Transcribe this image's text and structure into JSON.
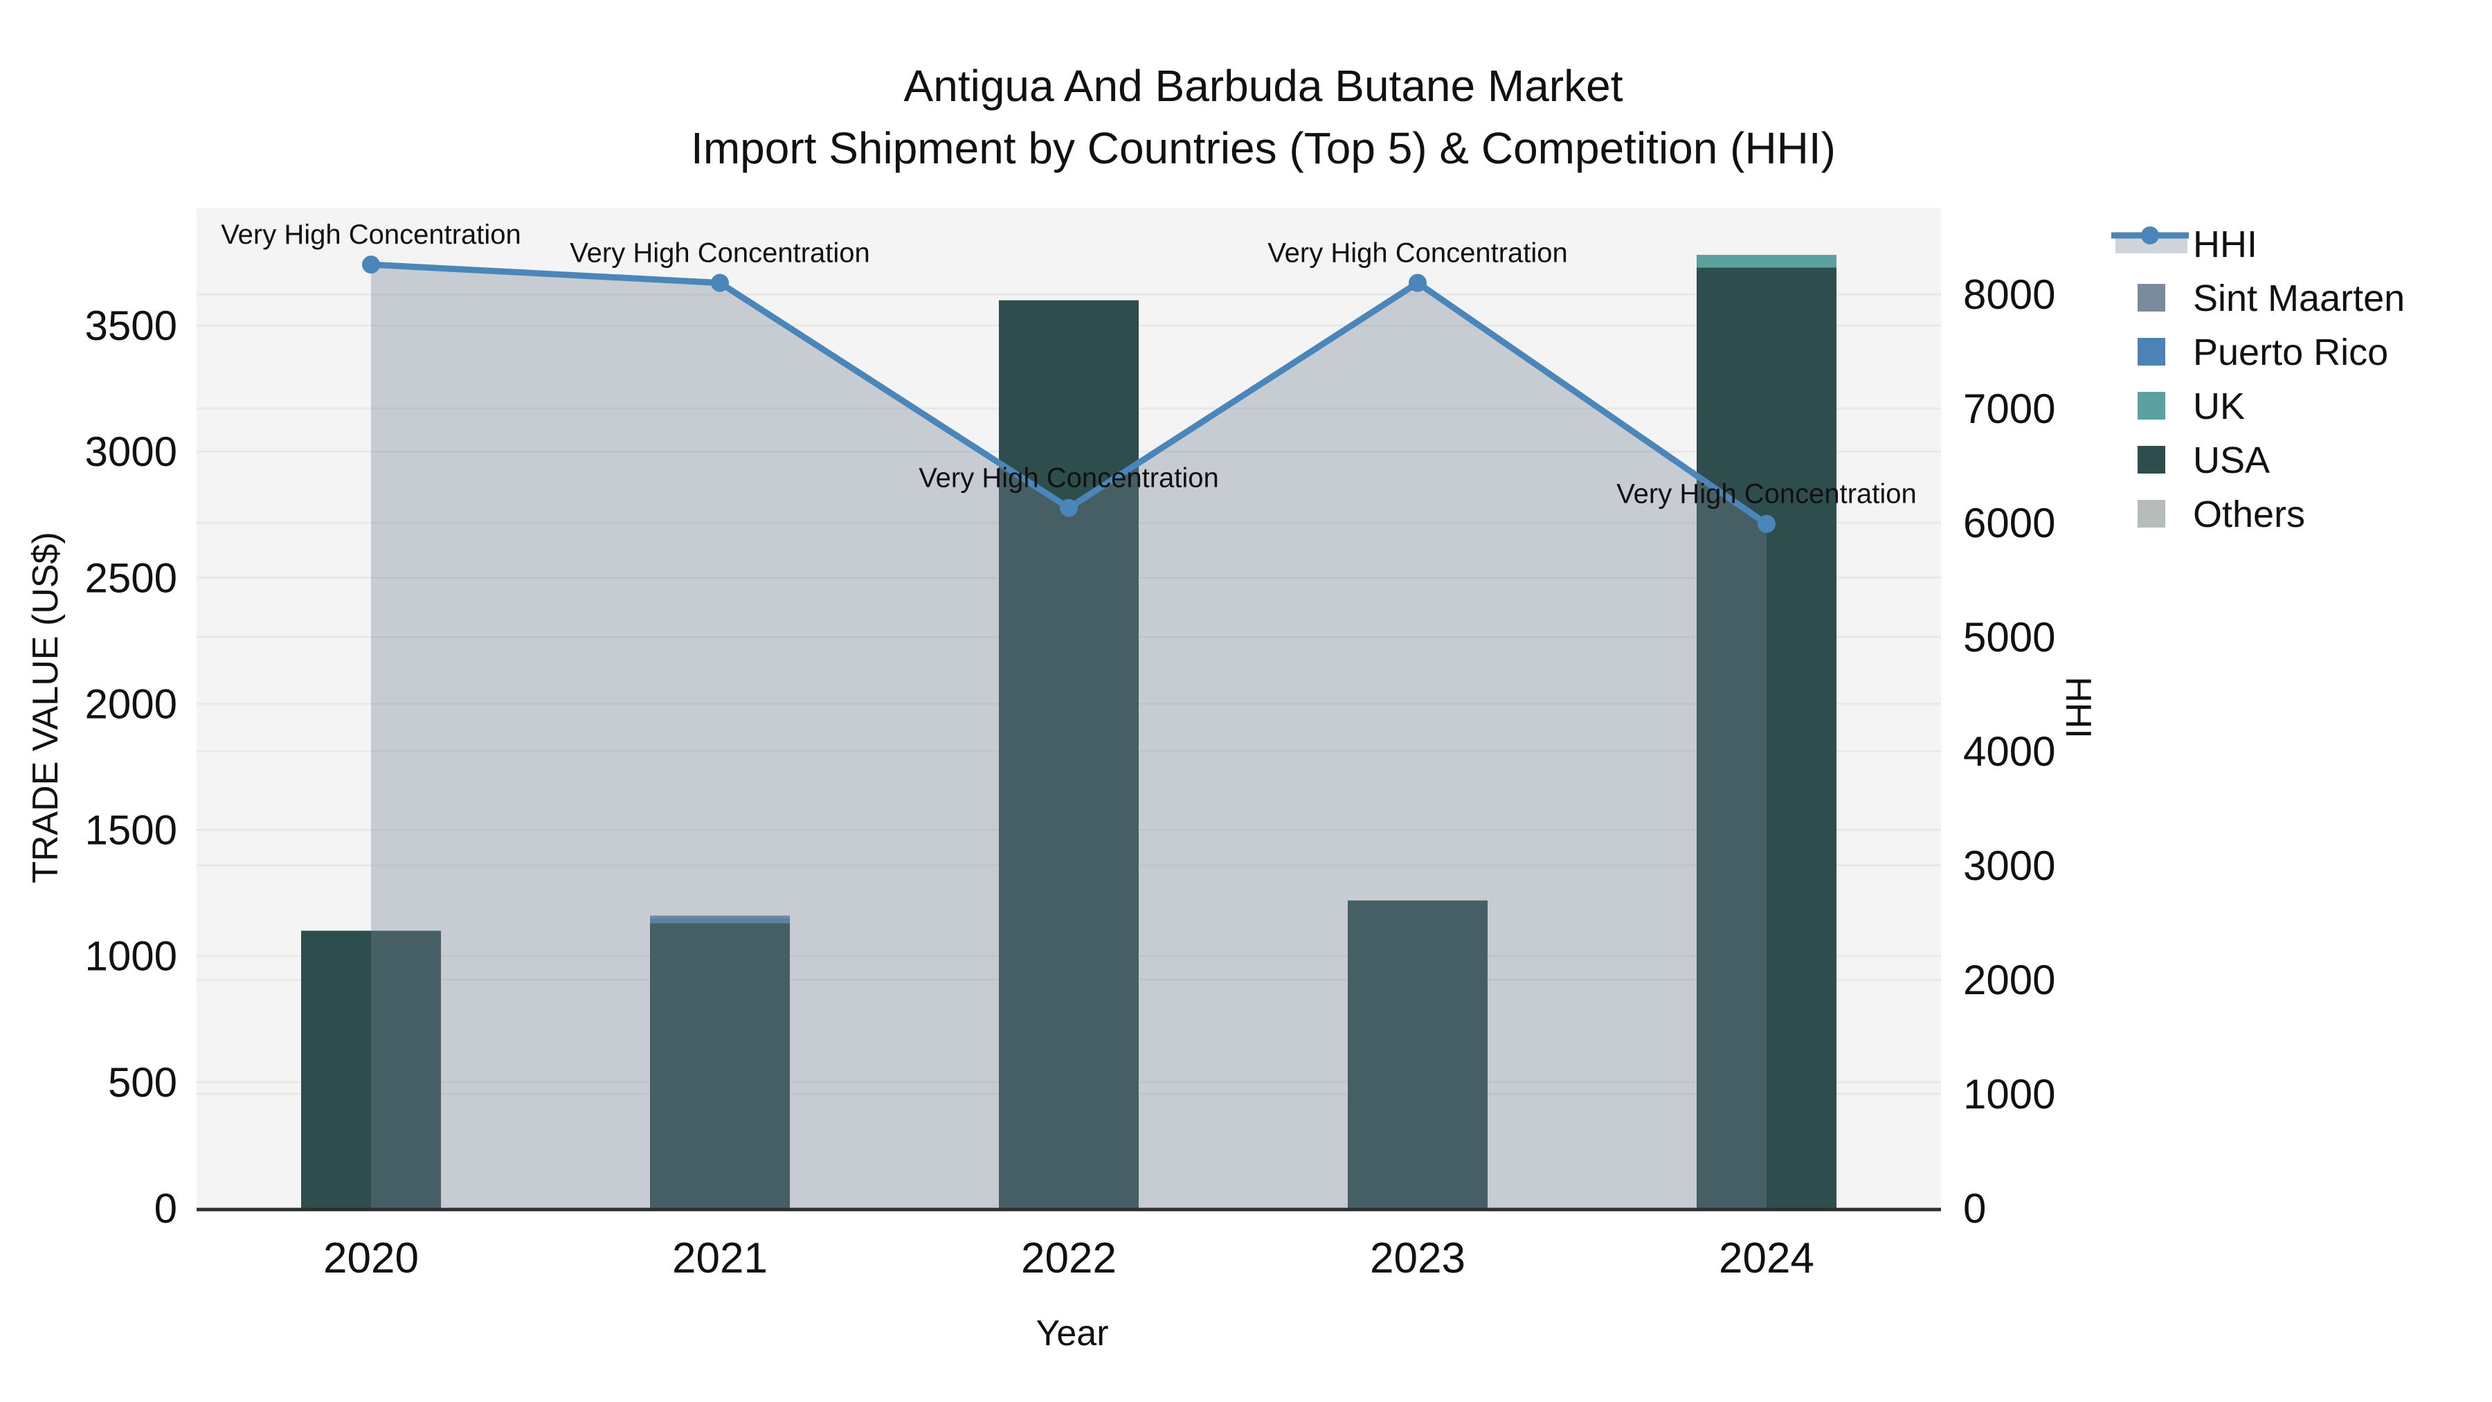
{
  "figure": {
    "title_line1": "Antigua And Barbuda Butane Market",
    "title_line2": "Import Shipment by Countries (Top 5) & Competition (HHI)",
    "background": "#ffffff",
    "plot_background": "#f4f4f4",
    "gridline_color": "#e8e8e8",
    "axis_line_color": "#2e2e2e",
    "text_color": "#111111"
  },
  "chart_data": {
    "type": "bar",
    "stacked": true,
    "title": "Antigua And Barbuda Butane Market",
    "subtitle": "Import Shipment by Countries (Top 5) & Competition (HHI)",
    "xlabel": "Year",
    "categories": [
      "2020",
      "2021",
      "2022",
      "2023",
      "2024"
    ],
    "series": [
      {
        "name": "USA",
        "color": "#2e4e4e",
        "values": [
          1100,
          1130,
          3600,
          1220,
          3730
        ]
      },
      {
        "name": "UK",
        "color": "#5ca0a0",
        "values": [
          0,
          0,
          0,
          0,
          50
        ]
      },
      {
        "name": "Puerto Rico",
        "color": "#4d83b4",
        "values": [
          0,
          20,
          0,
          0,
          0
        ]
      },
      {
        "name": "Sint Maarten",
        "color": "#7c8a9e",
        "values": [
          0,
          10,
          0,
          0,
          0
        ]
      },
      {
        "name": "Others",
        "color": "#b6bcbc",
        "values": [
          0,
          0,
          0,
          0,
          0
        ]
      }
    ],
    "bar_totals": [
      1100,
      1160,
      3600,
      1220,
      3780
    ],
    "line_series": {
      "name": "HHI",
      "axis": "right",
      "color": "#4a86ba",
      "area_fill": "rgba(112,128,144,0.35)",
      "values": [
        8260,
        8100,
        6130,
        8100,
        5990
      ],
      "annotations": [
        "Very High Concentration",
        "Very High Concentration",
        "Very High Concentration",
        "Very High Concentration",
        "Very High Concentration"
      ]
    },
    "y_left": {
      "label": "TRADE VALUE (US$)",
      "ticks": [
        0,
        500,
        1000,
        1500,
        2000,
        2500,
        3000,
        3500
      ],
      "max": 3967
    },
    "y_right": {
      "label": "HHI",
      "ticks": [
        0,
        1000,
        2000,
        3000,
        4000,
        5000,
        6000,
        7000,
        8000
      ],
      "max": 8758
    },
    "grid": true,
    "legend_position": "right"
  },
  "legend": {
    "items": [
      {
        "label": "HHI",
        "type": "line",
        "color": "#4a86ba",
        "band": "#cfd4da"
      },
      {
        "label": "Sint Maarten",
        "type": "swatch",
        "color": "#7c8a9e"
      },
      {
        "label": "Puerto Rico",
        "type": "swatch",
        "color": "#4d83b4"
      },
      {
        "label": "UK",
        "type": "swatch",
        "color": "#5ca0a0"
      },
      {
        "label": "USA",
        "type": "swatch",
        "color": "#2e4e4e"
      },
      {
        "label": "Others",
        "type": "swatch",
        "color": "#b6bcbc"
      }
    ]
  }
}
